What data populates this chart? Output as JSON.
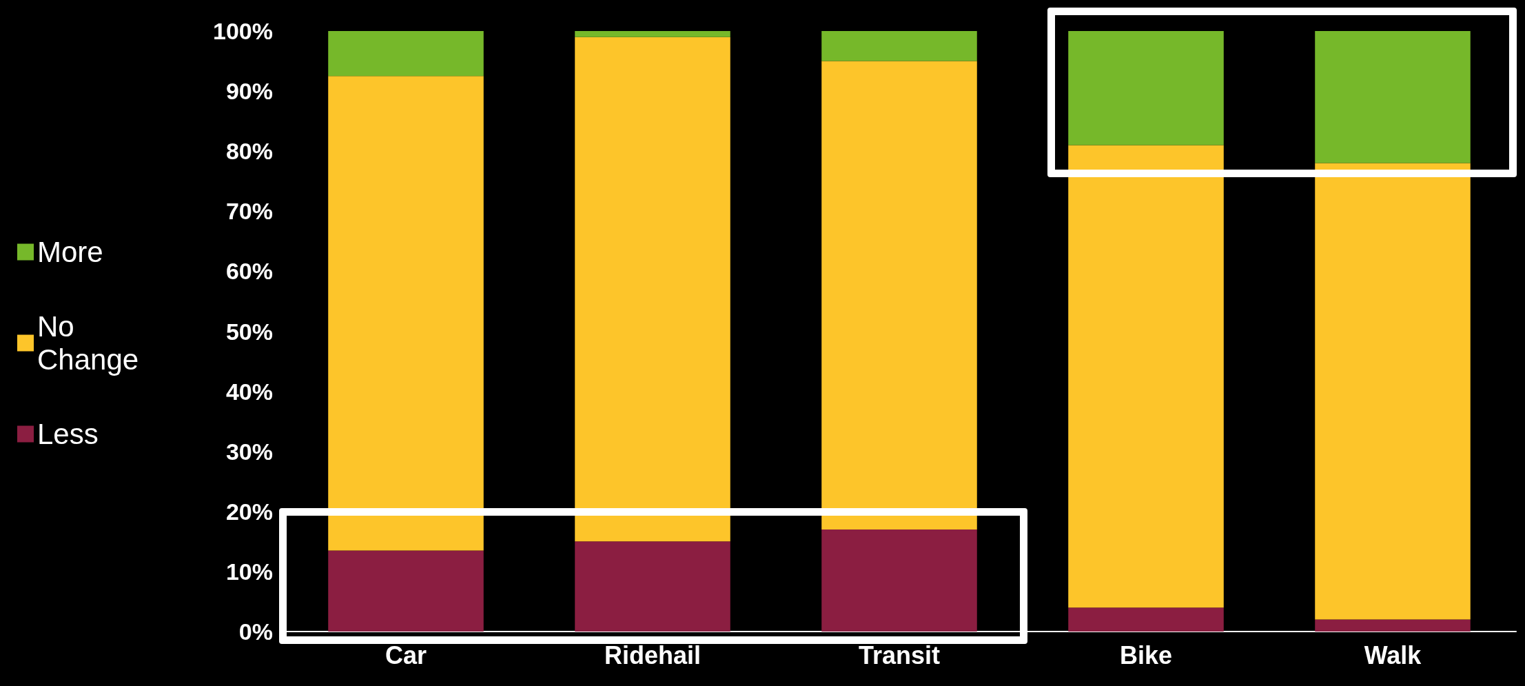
{
  "chart_data": {
    "type": "bar",
    "stacked": true,
    "categories": [
      "Car",
      "Ridehail",
      "Transit",
      "Bike",
      "Walk"
    ],
    "series": [
      {
        "name": "Less",
        "color": "#8b1e41",
        "values": [
          13.5,
          15,
          17,
          4,
          2
        ]
      },
      {
        "name": "No Change",
        "color": "#fdc52a",
        "values": [
          79,
          84,
          78,
          77,
          76
        ]
      },
      {
        "name": "More",
        "color": "#76b82a",
        "values": [
          7.5,
          1,
          5,
          19,
          22
        ]
      }
    ],
    "ylim": [
      0,
      100
    ],
    "yticks": [
      {
        "value": 0,
        "label": "0%"
      },
      {
        "value": 10,
        "label": "10%"
      },
      {
        "value": 20,
        "label": "20%"
      },
      {
        "value": 30,
        "label": "30%"
      },
      {
        "value": 40,
        "label": "40%"
      },
      {
        "value": 50,
        "label": "50%"
      },
      {
        "value": 60,
        "label": "60%"
      },
      {
        "value": 70,
        "label": "70%"
      },
      {
        "value": 80,
        "label": "80%"
      },
      {
        "value": 90,
        "label": "90%"
      },
      {
        "value": 100,
        "label": "100%"
      }
    ],
    "grid": false,
    "legend": "left"
  }
}
